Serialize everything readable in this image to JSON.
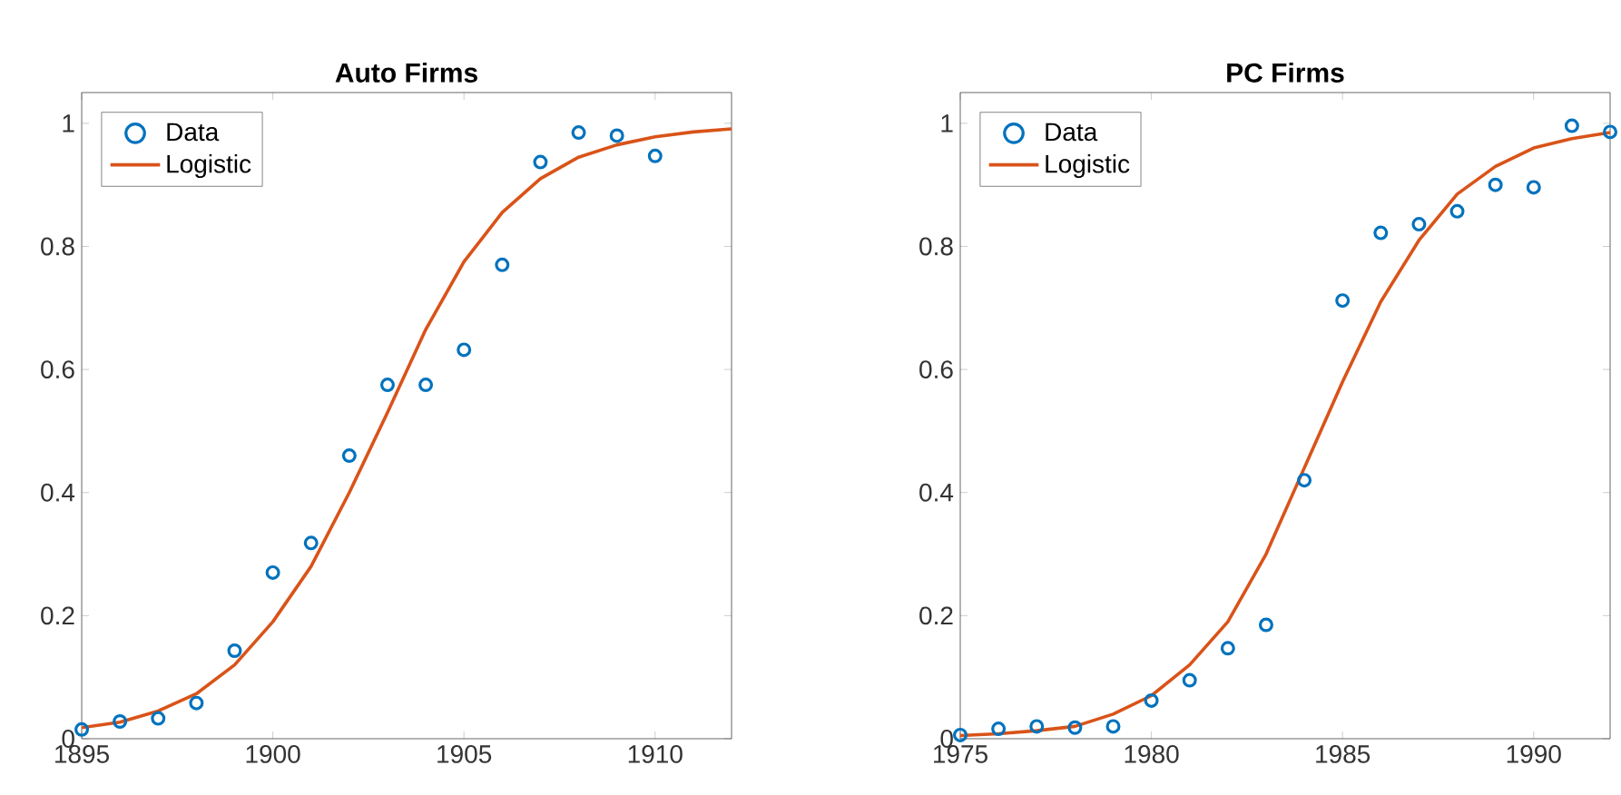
{
  "chart_data": [
    {
      "type": "line",
      "title": "Auto Firms",
      "xlim": [
        1895,
        1912
      ],
      "ylim": [
        0,
        1.05
      ],
      "xticks": [
        1895,
        1900,
        1905,
        1910
      ],
      "yticks": [
        0,
        0.2,
        0.4,
        0.6,
        0.8,
        1
      ],
      "grid": false,
      "legend": "top left",
      "series": [
        {
          "name": "Data",
          "type": "scatter",
          "marker": "circle",
          "color": "#0072bd",
          "x": [
            1895,
            1896,
            1897,
            1898,
            1899,
            1900,
            1901,
            1902,
            1903,
            1904,
            1905,
            1906,
            1907,
            1908,
            1909,
            1910
          ],
          "values": [
            0.015,
            0.028,
            0.033,
            0.058,
            0.143,
            0.27,
            0.318,
            0.46,
            0.575,
            0.575,
            0.632,
            0.77,
            0.937,
            0.985,
            0.98,
            0.947
          ]
        },
        {
          "name": "Logistic",
          "marker": "none",
          "line_style": "solid",
          "color": "#d95319",
          "x": [
            1895,
            1896,
            1897,
            1898,
            1899,
            1900,
            1901,
            1902,
            1903,
            1904,
            1905,
            1906,
            1907,
            1908,
            1909,
            1910,
            1911,
            1912
          ],
          "values": [
            0.018,
            0.027,
            0.045,
            0.073,
            0.12,
            0.19,
            0.28,
            0.4,
            0.53,
            0.665,
            0.775,
            0.855,
            0.91,
            0.945,
            0.965,
            0.978,
            0.986,
            0.991
          ]
        }
      ]
    },
    {
      "type": "line",
      "title": "PC Firms",
      "xlim": [
        1975,
        1992
      ],
      "ylim": [
        0,
        1.05
      ],
      "xticks": [
        1975,
        1980,
        1985,
        1990
      ],
      "yticks": [
        0,
        0.2,
        0.4,
        0.6,
        0.8,
        1
      ],
      "grid": false,
      "legend": "top left",
      "series": [
        {
          "name": "Data",
          "type": "scatter",
          "marker": "circle",
          "color": "#0072bd",
          "x": [
            1975,
            1976,
            1977,
            1978,
            1979,
            1980,
            1981,
            1982,
            1983,
            1984,
            1985,
            1986,
            1987,
            1988,
            1989,
            1990,
            1991,
            1992
          ],
          "values": [
            0.006,
            0.016,
            0.02,
            0.018,
            0.02,
            0.062,
            0.095,
            0.147,
            0.185,
            0.42,
            0.712,
            0.822,
            0.836,
            0.857,
            0.9,
            0.896,
            0.996,
            0.986
          ]
        },
        {
          "name": "Logistic",
          "marker": "none",
          "line_style": "solid",
          "color": "#d95319",
          "x": [
            1975,
            1976,
            1977,
            1978,
            1979,
            1980,
            1981,
            1982,
            1983,
            1984,
            1985,
            1986,
            1987,
            1988,
            1989,
            1990,
            1991,
            1992
          ],
          "values": [
            0.005,
            0.008,
            0.013,
            0.02,
            0.04,
            0.07,
            0.12,
            0.19,
            0.3,
            0.44,
            0.58,
            0.71,
            0.81,
            0.885,
            0.93,
            0.96,
            0.975,
            0.985
          ]
        }
      ]
    }
  ]
}
